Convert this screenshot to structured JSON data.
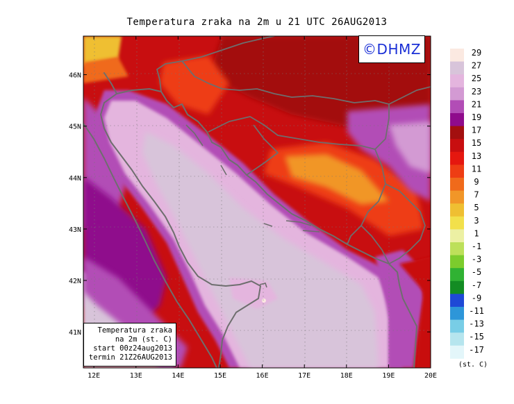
{
  "title": "Temperatura zraka na 2m u 21 UTC 26AUG2013",
  "logo_text": "©DHMZ",
  "info_box": {
    "line1": "Temperatura zraka",
    "line2": "na 2m (st. C)",
    "line3": "start 00z24aug2013",
    "line4": "termin 21Z26AUG2013"
  },
  "map": {
    "lon_ticks": [
      "12E",
      "13E",
      "14E",
      "15E",
      "16E",
      "17E",
      "18E",
      "19E",
      "20E"
    ],
    "lat_ticks": [
      "46N",
      "45N",
      "44N",
      "43N",
      "42N",
      "41N"
    ],
    "lon_range": [
      11.75,
      20.0
    ],
    "lat_range": [
      40.3,
      46.75
    ],
    "grid": "dotted"
  },
  "colorbar": {
    "unit": "(st. C)",
    "labels": [
      "29",
      "27",
      "25",
      "23",
      "21",
      "19",
      "17",
      "15",
      "13",
      "11",
      "9",
      "7",
      "5",
      "3",
      "1",
      "-1",
      "-3",
      "-5",
      "-7",
      "-9",
      "-11",
      "-13",
      "-15",
      "-17"
    ],
    "colors": [
      "#fbe9e1",
      "#d8c4da",
      "#e4b5de",
      "#d39ad3",
      "#b24db6",
      "#8f0b8c",
      "#a30f0f",
      "#c80e10",
      "#e5170f",
      "#ee3d14",
      "#f06a1b",
      "#f19628",
      "#efbf32",
      "#f2e04b",
      "#ecf0a3",
      "#bde05a",
      "#7ccc2d",
      "#30b233",
      "#138c23",
      "#1e49d6",
      "#2d96d9",
      "#78cde6",
      "#b6e5ee",
      "#e3f6fa"
    ]
  }
}
